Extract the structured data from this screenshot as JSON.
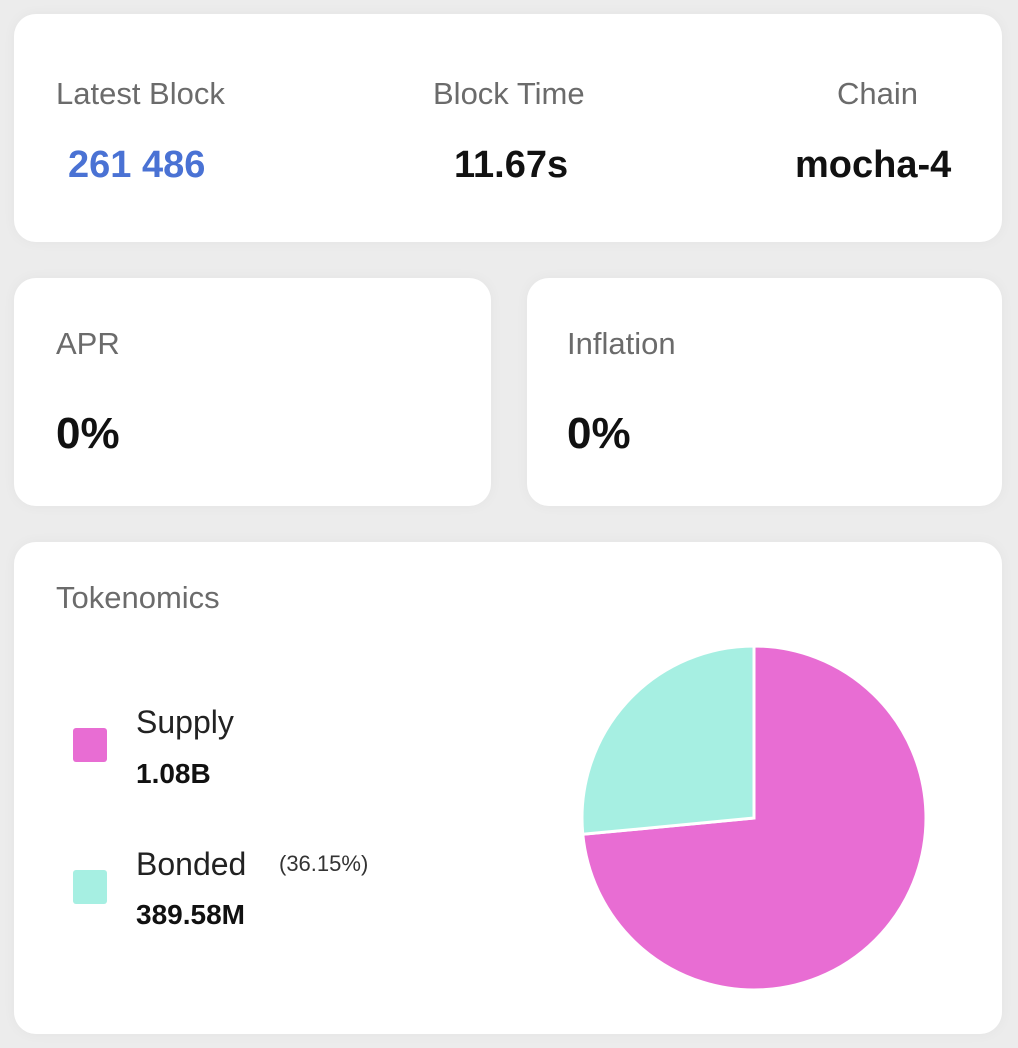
{
  "stats": {
    "latest_block": {
      "label": "Latest Block",
      "value": "261 486"
    },
    "block_time": {
      "label": "Block Time",
      "value": "11.67s"
    },
    "chain": {
      "label": "Chain",
      "value": "mocha-4"
    }
  },
  "apr": {
    "label": "APR",
    "value": "0%"
  },
  "inflation": {
    "label": "Inflation",
    "value": "0%"
  },
  "tokenomics": {
    "title": "Tokenomics",
    "legend": [
      {
        "name": "Supply",
        "value": "1.08B",
        "color": "#e86dd3"
      },
      {
        "name": "Bonded",
        "value": "389.58M",
        "percent": "(36.15%)",
        "color": "#a6efe2"
      }
    ]
  },
  "chart_data": {
    "type": "pie",
    "series": [
      {
        "name": "Supply",
        "value": 1080,
        "color": "#e86dd3"
      },
      {
        "name": "Bonded",
        "value": 389.58,
        "color": "#a6efe2"
      }
    ],
    "unit": "M"
  }
}
